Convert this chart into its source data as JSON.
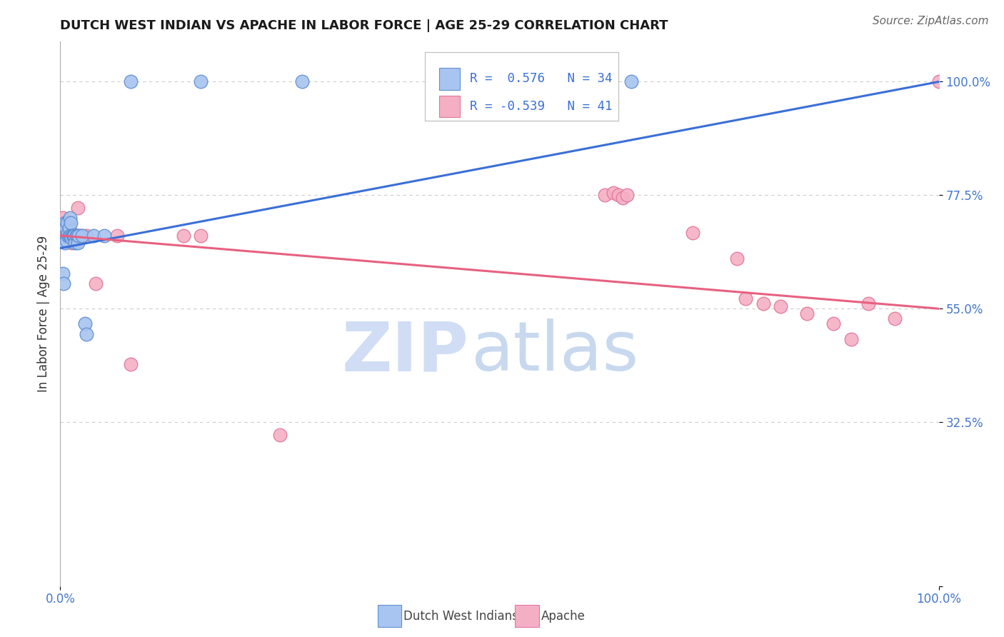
{
  "title": "DUTCH WEST INDIAN VS APACHE IN LABOR FORCE | AGE 25-29 CORRELATION CHART",
  "source": "Source: ZipAtlas.com",
  "ylabel": "In Labor Force | Age 25-29",
  "blue_label": "Dutch West Indians",
  "pink_label": "Apache",
  "blue_R": 0.576,
  "blue_N": 34,
  "pink_R": -0.539,
  "pink_N": 41,
  "xlim": [
    0,
    1.0
  ],
  "ylim": [
    0,
    1.0
  ],
  "ytick_positions": [
    0.0,
    0.325,
    0.55,
    0.775,
    1.0
  ],
  "ytick_labels": [
    "",
    "32.5%",
    "55.0%",
    "77.5%",
    "100.0%"
  ],
  "blue_scatter_x": [
    0.003,
    0.004,
    0.005,
    0.005,
    0.006,
    0.007,
    0.007,
    0.008,
    0.009,
    0.009,
    0.01,
    0.01,
    0.011,
    0.011,
    0.012,
    0.013,
    0.013,
    0.014,
    0.015,
    0.016,
    0.017,
    0.018,
    0.019,
    0.02,
    0.021,
    0.025,
    0.028,
    0.03,
    0.038,
    0.05,
    0.08,
    0.16,
    0.275,
    0.65
  ],
  "blue_scatter_y": [
    0.62,
    0.6,
    0.68,
    0.72,
    0.71,
    0.695,
    0.685,
    0.72,
    0.695,
    0.7,
    0.695,
    0.71,
    0.695,
    0.73,
    0.72,
    0.695,
    0.69,
    0.695,
    0.695,
    0.695,
    0.68,
    0.695,
    0.695,
    0.68,
    0.695,
    0.695,
    0.52,
    0.5,
    0.695,
    0.695,
    1.0,
    1.0,
    1.0,
    1.0
  ],
  "pink_scatter_x": [
    0.003,
    0.005,
    0.006,
    0.007,
    0.008,
    0.008,
    0.009,
    0.01,
    0.011,
    0.012,
    0.013,
    0.014,
    0.015,
    0.016,
    0.018,
    0.02,
    0.022,
    0.025,
    0.03,
    0.04,
    0.065,
    0.08,
    0.14,
    0.16,
    0.25,
    0.62,
    0.63,
    0.635,
    0.64,
    0.645,
    0.72,
    0.77,
    0.78,
    0.8,
    0.82,
    0.85,
    0.88,
    0.9,
    0.92,
    0.95,
    1.0
  ],
  "pink_scatter_y": [
    0.73,
    0.72,
    0.695,
    0.72,
    0.695,
    0.71,
    0.695,
    0.695,
    0.72,
    0.695,
    0.68,
    0.695,
    0.695,
    0.695,
    0.695,
    0.75,
    0.695,
    0.695,
    0.695,
    0.6,
    0.695,
    0.44,
    0.695,
    0.695,
    0.3,
    0.775,
    0.78,
    0.775,
    0.77,
    0.775,
    0.7,
    0.65,
    0.57,
    0.56,
    0.555,
    0.54,
    0.52,
    0.49,
    0.56,
    0.53,
    1.0
  ],
  "blue_line_x0": 0.0,
  "blue_line_y0": 0.67,
  "blue_line_x1": 1.0,
  "blue_line_y1": 1.0,
  "pink_line_x0": 0.0,
  "pink_line_y0": 0.695,
  "pink_line_x1": 1.0,
  "pink_line_y1": 0.55,
  "blue_line_color": "#3a6fd8",
  "pink_line_color": "#e86080",
  "blue_scatter_color": "#a8c4f0",
  "pink_scatter_color": "#f5afc5",
  "blue_scatter_edge": "#6090d0",
  "pink_scatter_edge": "#e07898",
  "background_color": "#ffffff",
  "grid_color": "#cccccc",
  "watermark_ZIP_color": "#d0ddf5",
  "watermark_atlas_color": "#c8d8ee"
}
